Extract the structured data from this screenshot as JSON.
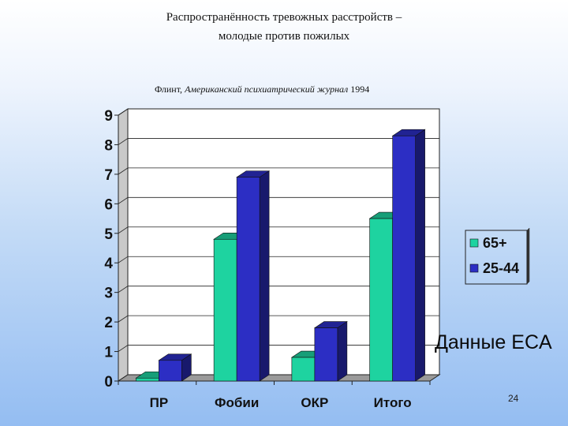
{
  "slide": {
    "title_line1": "Распространённость тревожных расстройств –",
    "title_line2": "молодые против пожилых",
    "source_author": "Флинт, ",
    "source_journal": "Американский психиатрический журнал",
    "source_year": " 1994",
    "annotation": "Данные ECA",
    "page_number": "24"
  },
  "chart_data": {
    "type": "bar",
    "categories": [
      "ПР",
      "Фобии",
      "ОКР",
      "Итого"
    ],
    "series": [
      {
        "name": "65+",
        "values": [
          0.1,
          4.8,
          0.8,
          5.5
        ],
        "color": "#1ed3a0"
      },
      {
        "name": "25-44",
        "values": [
          0.7,
          6.9,
          1.8,
          8.3
        ],
        "color": "#2c2ec4"
      }
    ],
    "ylim": [
      0,
      9
    ],
    "yticks": [
      "0",
      "1",
      "2",
      "3",
      "4",
      "5",
      "6",
      "7",
      "8",
      "9"
    ],
    "grid": true,
    "legend_position": "right",
    "three_d": true
  }
}
